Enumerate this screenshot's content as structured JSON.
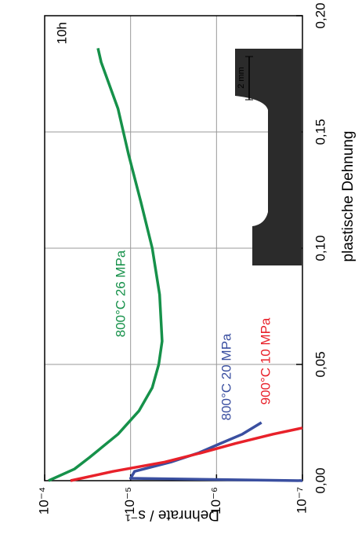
{
  "chart_data": {
    "type": "line",
    "x_label": "plastische Dehnung",
    "y_label": "Dehnrate / s⁻¹",
    "y_scale": "log",
    "grid": true,
    "xlim": [
      0,
      0.2
    ],
    "xticks": [
      {
        "value": 0,
        "label": "0,00"
      },
      {
        "value": 0.05,
        "label": "0,05"
      },
      {
        "value": 0.1,
        "label": "0,10"
      },
      {
        "value": 0.15,
        "label": "0,15"
      },
      {
        "value": 0.2,
        "label": "0,20"
      }
    ],
    "ylim": [
      1e-07,
      0.0001
    ],
    "yticks": [
      {
        "value": 1e-07,
        "label": "10⁻⁷"
      },
      {
        "value": 1e-06,
        "label": "10⁻⁶"
      },
      {
        "value": 1e-05,
        "label": "10⁻⁵"
      },
      {
        "value": 0.0001,
        "label": "10⁻⁴"
      }
    ],
    "series": [
      {
        "name": "800°C 26 MPa",
        "color": "#16914a",
        "x": [
          0,
          0.005,
          0.01,
          0.02,
          0.03,
          0.04,
          0.05,
          0.06,
          0.08,
          0.1,
          0.12,
          0.14,
          0.16,
          0.18,
          0.186
        ],
        "values": [
          9e-05,
          4.5e-05,
          3e-05,
          1.4e-05,
          8e-06,
          5.6e-06,
          4.7e-06,
          4.3e-06,
          4.6e-06,
          5.6e-06,
          7.6e-06,
          1.05e-05,
          1.4e-05,
          2.2e-05,
          2.4e-05
        ]
      },
      {
        "name": "800°C 20 MPa",
        "color": "#3a4fa0",
        "x": [
          0,
          0.001,
          0.004,
          0.008,
          0.012,
          0.016,
          0.02,
          0.025
        ],
        "values": [
          1e-07,
          1e-05,
          9e-06,
          3.4e-06,
          1.6e-06,
          9e-07,
          5e-07,
          3e-07
        ]
      },
      {
        "name": "900°C 10 MPa",
        "color": "#e8212a",
        "x": [
          0,
          0.004,
          0.008,
          0.012,
          0.016,
          0.02,
          0.0227
        ],
        "values": [
          5e-05,
          1.6e-05,
          4e-06,
          1.5e-06,
          6e-07,
          2.2e-07,
          1e-07
        ]
      }
    ],
    "annotations": [
      "10h"
    ],
    "inset": {
      "scale_label": "2 mm"
    }
  }
}
